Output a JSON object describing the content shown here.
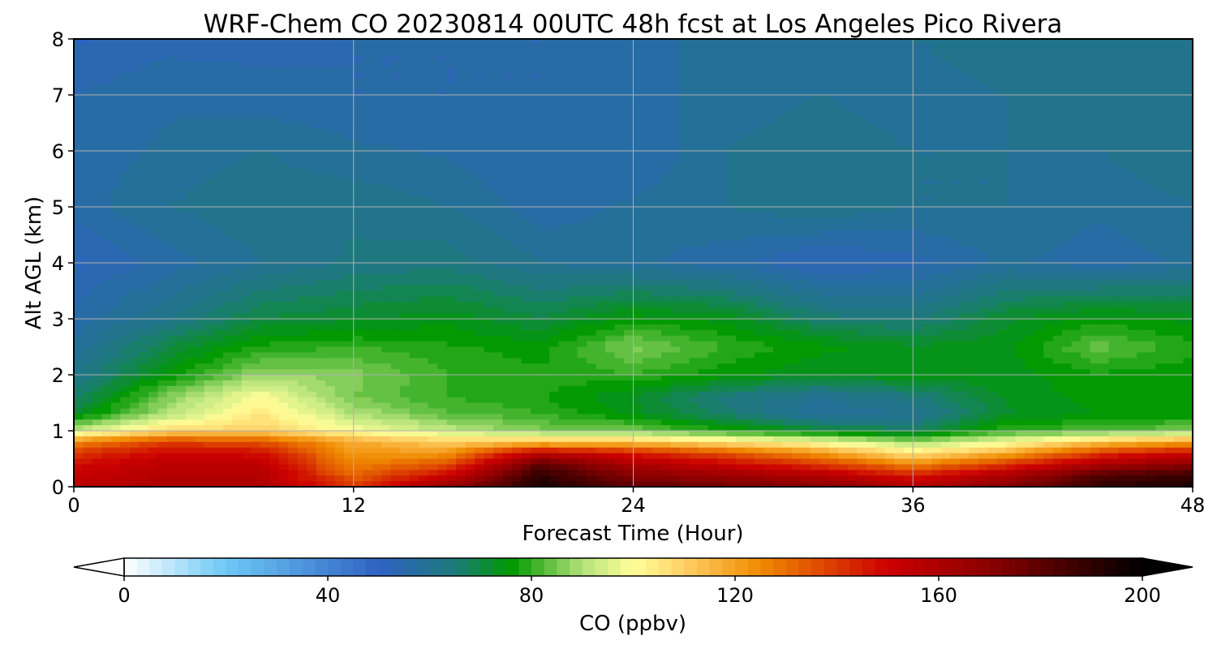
{
  "chart_data": {
    "type": "heatmap",
    "title": "WRF-Chem CO  20230814 00UTC 48h fcst at Los Angeles Pico Rivera",
    "xlabel": "Forecast Time (Hour)",
    "ylabel": "Alt AGL (km)",
    "xlim": [
      0,
      48
    ],
    "ylim": [
      0,
      8
    ],
    "x_ticks": [
      0,
      12,
      24,
      36,
      48
    ],
    "y_ticks": [
      0,
      1,
      2,
      3,
      4,
      5,
      6,
      7,
      8
    ],
    "grid": true,
    "colorbar": {
      "label": "CO  (ppbv)",
      "range": [
        0,
        200
      ],
      "ticks": [
        0,
        40,
        80,
        120,
        160,
        200
      ],
      "extend": "both",
      "color_stops": [
        {
          "value": 0,
          "color": "#ffffff"
        },
        {
          "value": 20,
          "color": "#6ec8f5"
        },
        {
          "value": 50,
          "color": "#2f62c3"
        },
        {
          "value": 65,
          "color": "#1d7a7a"
        },
        {
          "value": 76,
          "color": "#009900"
        },
        {
          "value": 90,
          "color": "#b4e27a"
        },
        {
          "value": 100,
          "color": "#ffff99"
        },
        {
          "value": 110,
          "color": "#ffd066"
        },
        {
          "value": 125,
          "color": "#f08a00"
        },
        {
          "value": 150,
          "color": "#cc0000"
        },
        {
          "value": 170,
          "color": "#8b0000"
        },
        {
          "value": 200,
          "color": "#000000"
        }
      ]
    },
    "x": [
      0,
      4,
      8,
      12,
      16,
      20,
      24,
      28,
      32,
      36,
      40,
      44,
      48
    ],
    "y": [
      0,
      0.2,
      0.4,
      0.6,
      0.8,
      1.0,
      1.3,
      1.6,
      2.0,
      2.5,
      3.0,
      4.0,
      5.0,
      6.0,
      7.0,
      8.0
    ],
    "z": [
      [
        155,
        160,
        160,
        140,
        165,
        195,
        180,
        175,
        170,
        158,
        170,
        190,
        195
      ],
      [
        152,
        158,
        158,
        132,
        150,
        190,
        170,
        165,
        158,
        145,
        160,
        182,
        188
      ],
      [
        148,
        155,
        155,
        126,
        135,
        180,
        160,
        150,
        140,
        125,
        140,
        160,
        170
      ],
      [
        140,
        150,
        148,
        122,
        122,
        155,
        145,
        135,
        122,
        105,
        118,
        140,
        150
      ],
      [
        125,
        138,
        135,
        118,
        110,
        112,
        112,
        105,
        98,
        88,
        98,
        112,
        120
      ],
      [
        92,
        108,
        110,
        100,
        92,
        86,
        85,
        78,
        72,
        68,
        80,
        82,
        85
      ],
      [
        72,
        90,
        105,
        90,
        83,
        80,
        74,
        66,
        58,
        60,
        72,
        75,
        76
      ],
      [
        66,
        86,
        100,
        85,
        80,
        78,
        72,
        64,
        60,
        64,
        73,
        76,
        76
      ],
      [
        62,
        75,
        88,
        86,
        80,
        78,
        80,
        76,
        72,
        75,
        74,
        77,
        76
      ],
      [
        58,
        70,
        78,
        80,
        78,
        76,
        86,
        80,
        76,
        73,
        74,
        84,
        78
      ],
      [
        56,
        62,
        70,
        72,
        74,
        70,
        76,
        74,
        66,
        64,
        72,
        76,
        74
      ],
      [
        52,
        56,
        60,
        63,
        64,
        60,
        58,
        56,
        52,
        54,
        58,
        56,
        58
      ],
      [
        56,
        60,
        62,
        62,
        60,
        56,
        58,
        60,
        62,
        60,
        60,
        58,
        60
      ],
      [
        56,
        58,
        60,
        58,
        57,
        55,
        55,
        60,
        62,
        60,
        60,
        60,
        62
      ],
      [
        55,
        57,
        56,
        55,
        55,
        55,
        57,
        58,
        60,
        58,
        60,
        62,
        62
      ],
      [
        52,
        54,
        54,
        55,
        55,
        55,
        57,
        58,
        60,
        60,
        62,
        62,
        62
      ]
    ]
  }
}
